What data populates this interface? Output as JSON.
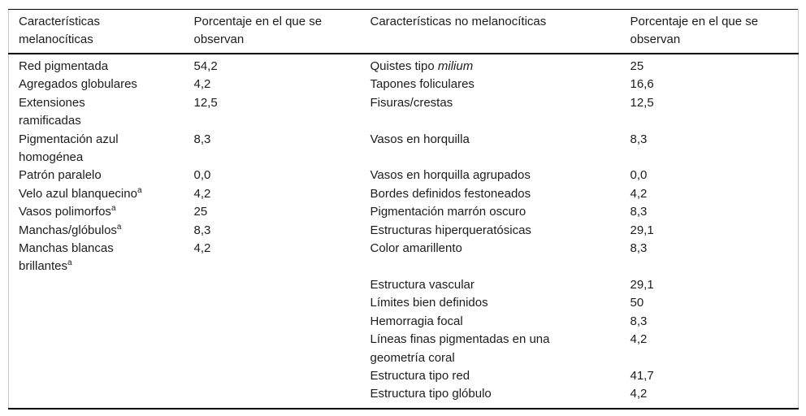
{
  "table": {
    "headers": [
      "Características\nmelanocíticas",
      "Porcentaje en el que se\nobservan",
      "Características no melanocíticas",
      "Porcentaje en el que se\nobservan"
    ],
    "rows": [
      {
        "mel": "Red pigmentada",
        "mel_pct": "54,2",
        "nomel": "Quistes tipo ",
        "nomel_italic": "milium",
        "nomel_pct": "25"
      },
      {
        "mel": "Agregados globulares",
        "mel_pct": "4,2",
        "nomel": "Tapones foliculares",
        "nomel_pct": "16,6"
      },
      {
        "mel": "Extensiones\nramificadas",
        "mel_pct": "12,5",
        "nomel": "Fisuras/crestas",
        "nomel_pct": "12,5"
      },
      {
        "mel": "Pigmentación azul\nhomogénea",
        "mel_pct": "8,3",
        "nomel": "Vasos en horquilla",
        "nomel_pct": "8,3"
      },
      {
        "mel": "Patrón paralelo",
        "mel_pct": "0,0",
        "nomel": "Vasos en horquilla agrupados",
        "nomel_pct": "0,0"
      },
      {
        "mel": "Velo azul blanquecino",
        "mel_sup": "a",
        "mel_pct": "4,2",
        "nomel": "Bordes definidos festoneados",
        "nomel_pct": "4,2"
      },
      {
        "mel": "Vasos polimorfos",
        "mel_sup": "a",
        "mel_pct": "25",
        "nomel": "Pigmentación marrón oscuro",
        "nomel_pct": "8,3"
      },
      {
        "mel": "Manchas/glóbulos",
        "mel_sup": "a",
        "mel_pct": "8,3",
        "nomel": "Estructuras hiperqueratósicas",
        "nomel_pct": "29,1"
      },
      {
        "mel": "Manchas blancas\nbrillantes",
        "mel_sup": "a",
        "mel_pct": "4,2",
        "nomel": "Color amarillento",
        "nomel_pct": "8,3"
      },
      {
        "nomel": "Estructura vascular",
        "nomel_pct": "29,1"
      },
      {
        "nomel": "Límites bien definidos",
        "nomel_pct": "50"
      },
      {
        "nomel": "Hemorragia focal",
        "nomel_pct": "8,3"
      },
      {
        "nomel": "Líneas finas pigmentadas en una\ngeometría coral",
        "nomel_pct": "4,2"
      },
      {
        "nomel": "Estructura tipo red",
        "nomel_pct": "41,7"
      },
      {
        "nomel": "Estructura tipo glóbulo",
        "nomel_pct": "4,2"
      }
    ]
  },
  "colors": {
    "rule": "#000000",
    "side_border": "#c9c9c9",
    "text": "#1c1c1c",
    "background": "#ffffff"
  }
}
